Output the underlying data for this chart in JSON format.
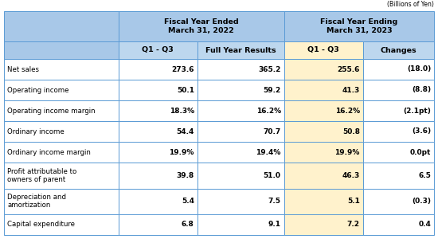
{
  "super_header_left": "Fiscal Year Ended\nMarch 31, 2022",
  "super_header_right": "Fiscal Year Ending\nMarch 31, 2023",
  "sub_headers": [
    "Q1 - Q3",
    "Full Year Results",
    "Q1 - Q3",
    "Changes"
  ],
  "top_note": "(Billions of Yen)",
  "rows": [
    {
      "label": "Net sales",
      "vals": [
        "273.6",
        "365.2",
        "255.6",
        "(18.0)"
      ],
      "two_line": false
    },
    {
      "label": "Operating income",
      "vals": [
        "50.1",
        "59.2",
        "41.3",
        "(8.8)"
      ],
      "two_line": false
    },
    {
      "label": "Operating income margin",
      "vals": [
        "18.3%",
        "16.2%",
        "16.2%",
        "(2.1pt)"
      ],
      "two_line": false
    },
    {
      "label": "Ordinary income",
      "vals": [
        "54.4",
        "70.7",
        "50.8",
        "(3.6)"
      ],
      "two_line": false
    },
    {
      "label": "Ordinary income margin",
      "vals": [
        "19.9%",
        "19.4%",
        "19.9%",
        "0.0pt"
      ],
      "two_line": false
    },
    {
      "label": "Profit attributable to\nowners of parent",
      "vals": [
        "39.8",
        "51.0",
        "46.3",
        "6.5"
      ],
      "two_line": true
    },
    {
      "label": "Depreciation and\namortization",
      "vals": [
        "5.4",
        "7.5",
        "5.1",
        "(0.3)"
      ],
      "two_line": true
    },
    {
      "label": "Capital expenditure",
      "vals": [
        "6.8",
        "9.1",
        "7.2",
        "0.4"
      ],
      "two_line": false
    }
  ],
  "color_header_blue": "#A8C8E8",
  "color_subheader_blue": "#BDD7EE",
  "color_highlight_yellow": "#FFF2CC",
  "color_white": "#FFFFFF",
  "color_border": "#5B9BD5",
  "color_text": "#000000",
  "figsize": [
    5.5,
    3.0
  ],
  "dpi": 100
}
